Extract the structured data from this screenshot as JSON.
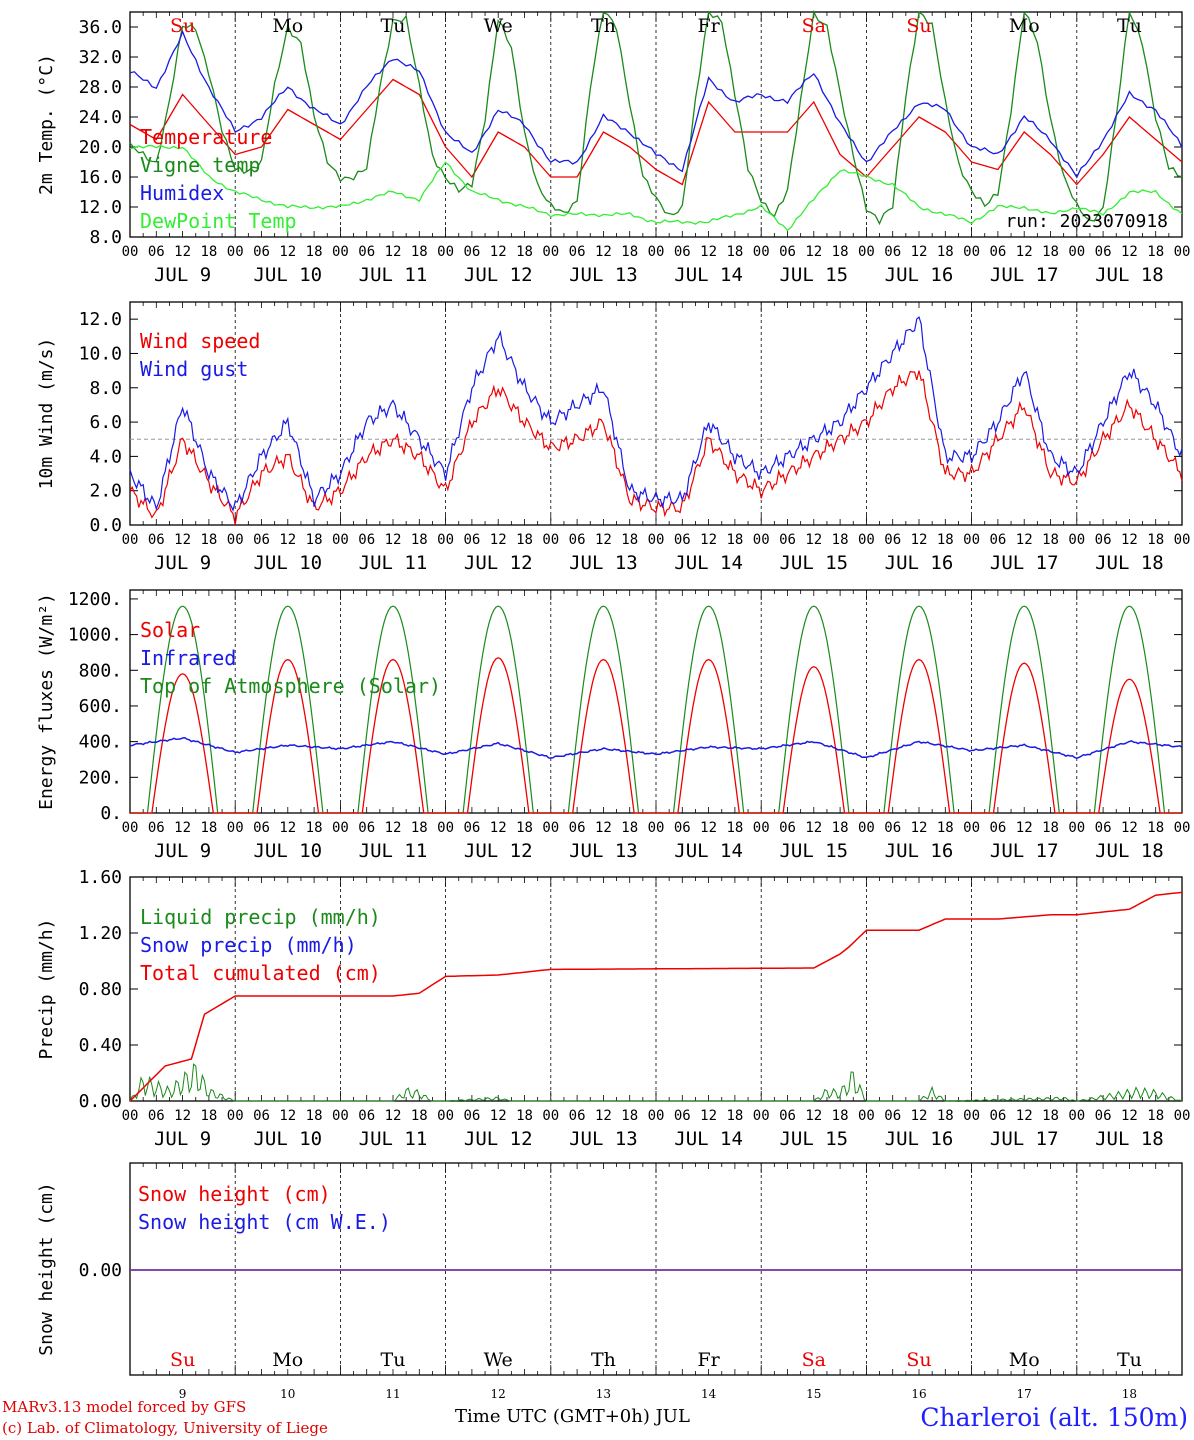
{
  "colors": {
    "red": "#ee0000",
    "green": "#1a8a1a",
    "blue": "#1a1ae6",
    "lightgreen": "#33ee33",
    "purple": "#7030a0",
    "gray": "#999999"
  },
  "days": {
    "weekday_labels": [
      "Su",
      "Mo",
      "Tu",
      "We",
      "Th",
      "Fr",
      "Sa",
      "Su",
      "Mo",
      "Tu"
    ],
    "weekend_flags": [
      true,
      false,
      false,
      false,
      false,
      false,
      true,
      true,
      false,
      false
    ],
    "date_labels": [
      "JUL  9",
      "JUL 10",
      "JUL 11",
      "JUL 12",
      "JUL 13",
      "JUL 14",
      "JUL 15",
      "JUL 16",
      "JUL 17",
      "JUL 18"
    ],
    "day_numbers": [
      "9",
      "10",
      "11",
      "12",
      "13",
      "14",
      "15",
      "16",
      "17",
      "18"
    ],
    "hour_labels": [
      "00",
      "06",
      "12",
      "18"
    ],
    "final_hour_label": "00"
  },
  "footer": {
    "model_line": "MARv3.13 model forced by GFS",
    "credit_line": "(c) Lab. of Climatology, University of Liege",
    "time_axis_label": "Time UTC (GMT+0h) JUL",
    "station": "Charleroi (alt. 150m)"
  },
  "chart_data": [
    {
      "type": "line",
      "ylabel": "2m Temp. (°C)",
      "ylim": [
        8,
        38
      ],
      "yticks": [
        "8.0",
        "12.0",
        "16.0",
        "20.0",
        "24.0",
        "28.0",
        "32.0",
        "36.0"
      ],
      "annotation": "run: 2023070918",
      "series": [
        {
          "name": "Temperature",
          "color": "red",
          "x": [
            0,
            6,
            12,
            18,
            24,
            30,
            36,
            42,
            48,
            54,
            60,
            66,
            72,
            78,
            84,
            90,
            96,
            102,
            108,
            114,
            120,
            126,
            132,
            138,
            144,
            150,
            156,
            162,
            168,
            174,
            180,
            186,
            192,
            198,
            204,
            210,
            216,
            222,
            228,
            234,
            240
          ],
          "values": [
            23,
            21,
            27,
            23,
            19,
            20,
            25,
            23,
            21,
            25,
            29,
            27,
            20,
            16,
            22,
            20,
            16,
            16,
            22,
            20,
            17,
            15,
            26,
            22,
            22,
            22,
            26,
            19,
            16,
            20,
            24,
            22,
            18,
            17,
            22,
            19,
            15,
            19,
            24,
            21,
            18
          ]
        },
        {
          "name": "Vigne temp",
          "color": "green",
          "x": [
            0,
            3,
            6,
            9,
            12,
            15,
            18,
            21,
            24,
            27,
            30,
            33,
            36,
            39,
            42,
            45,
            48,
            51,
            54,
            57,
            60,
            63,
            66,
            69,
            72,
            75,
            78,
            81,
            84,
            87,
            90,
            93,
            96,
            99,
            102,
            105,
            108,
            111,
            114,
            117,
            120,
            123,
            126,
            129,
            132,
            135,
            138,
            141,
            144,
            147,
            150,
            153,
            156,
            159,
            162,
            165,
            168,
            171,
            174,
            177,
            180,
            183,
            186,
            189,
            192,
            195,
            198,
            201,
            204,
            207,
            210,
            213,
            216,
            219,
            222,
            225,
            228,
            231,
            234,
            237,
            240
          ],
          "values": [
            20,
            19,
            18,
            26,
            36,
            36,
            30,
            22,
            17,
            17,
            18,
            28,
            36,
            34,
            24,
            18,
            16,
            16,
            17,
            28,
            37,
            37,
            28,
            19,
            16,
            14,
            15,
            24,
            37,
            33,
            22,
            15,
            12,
            11,
            13,
            28,
            38,
            36,
            26,
            16,
            13,
            11,
            12,
            26,
            38,
            37,
            27,
            17,
            13,
            11,
            14,
            26,
            38,
            36,
            27,
            19,
            12,
            10,
            12,
            27,
            38,
            36,
            26,
            18,
            14,
            12,
            14,
            25,
            38,
            34,
            24,
            16,
            12,
            10,
            12,
            24,
            38,
            34,
            24,
            17,
            16
          ]
        },
        {
          "name": "Humidex",
          "color": "blue",
          "x": [
            0,
            6,
            12,
            18,
            24,
            30,
            36,
            42,
            48,
            54,
            60,
            66,
            72,
            78,
            84,
            90,
            96,
            102,
            108,
            114,
            120,
            126,
            132,
            138,
            144,
            150,
            156,
            162,
            168,
            174,
            180,
            186,
            192,
            198,
            204,
            210,
            216,
            222,
            228,
            234,
            240
          ],
          "values": [
            30,
            28,
            35,
            28,
            22,
            24,
            28,
            25,
            23,
            28,
            32,
            30,
            22,
            19,
            25,
            23,
            18,
            18,
            24,
            22,
            19,
            17,
            29,
            26,
            27,
            26,
            30,
            23,
            18,
            22,
            26,
            25,
            20,
            19,
            24,
            21,
            16,
            21,
            27,
            25,
            20
          ]
        },
        {
          "name": "DewPoint Temp",
          "color": "lightgreen",
          "x": [
            0,
            6,
            12,
            18,
            24,
            30,
            36,
            42,
            48,
            54,
            60,
            66,
            72,
            78,
            84,
            90,
            96,
            102,
            108,
            114,
            120,
            126,
            132,
            138,
            144,
            150,
            156,
            162,
            168,
            174,
            180,
            186,
            192,
            198,
            204,
            210,
            216,
            222,
            228,
            234,
            240
          ],
          "values": [
            20,
            20,
            20,
            16,
            14,
            13,
            12,
            12,
            12,
            13,
            14,
            13,
            18,
            14,
            13,
            12,
            11,
            11,
            11,
            11,
            10,
            10,
            10,
            11,
            12,
            9,
            13,
            17,
            16,
            15,
            12,
            11,
            10,
            12,
            12,
            11,
            12,
            11,
            14,
            14,
            11
          ]
        }
      ]
    },
    {
      "type": "line",
      "ylabel": "10m Wind (m/s)",
      "ylim": [
        0,
        13
      ],
      "yticks": [
        "0.0",
        "2.0",
        "4.0",
        "6.0",
        "8.0",
        "10.0",
        "12.0"
      ],
      "reference_line": 5,
      "series": [
        {
          "name": "Wind speed",
          "color": "red",
          "x": [
            0,
            6,
            12,
            18,
            24,
            30,
            36,
            42,
            48,
            54,
            60,
            66,
            72,
            78,
            84,
            90,
            96,
            102,
            108,
            114,
            120,
            126,
            132,
            138,
            144,
            150,
            156,
            162,
            168,
            174,
            180,
            186,
            192,
            198,
            204,
            210,
            216,
            222,
            228,
            234,
            240
          ],
          "values": [
            2,
            0.5,
            5,
            2.5,
            0.5,
            3,
            4,
            1,
            2,
            4,
            5,
            4,
            2,
            6,
            8,
            6,
            4.5,
            5,
            6,
            1.5,
            1,
            1,
            5,
            3,
            2,
            3,
            4,
            5,
            6,
            8,
            9,
            3,
            3,
            5,
            7,
            3,
            2.5,
            5,
            7,
            5,
            3
          ]
        },
        {
          "name": "Wind gust",
          "color": "blue",
          "x": [
            0,
            6,
            12,
            18,
            24,
            30,
            36,
            42,
            48,
            54,
            60,
            66,
            72,
            78,
            84,
            90,
            96,
            102,
            108,
            114,
            120,
            126,
            132,
            138,
            144,
            150,
            156,
            162,
            168,
            174,
            180,
            186,
            192,
            198,
            204,
            210,
            216,
            222,
            228,
            234,
            240
          ],
          "values": [
            3,
            1,
            7,
            3,
            1,
            4,
            6,
            1.5,
            3,
            6,
            7,
            5,
            3,
            8,
            11,
            8,
            6,
            7,
            8,
            2,
            1.5,
            1.5,
            6,
            4,
            3,
            4,
            5,
            6,
            8,
            10,
            12,
            4,
            4,
            6,
            9,
            4,
            3,
            6,
            9,
            7,
            4
          ]
        }
      ]
    },
    {
      "type": "line",
      "ylabel": "Energy fluxes (W/m²)",
      "ylim": [
        0,
        1250
      ],
      "yticks": [
        "0.",
        "200.",
        "400.",
        "600.",
        "800.",
        "1000.",
        "1200."
      ],
      "series": [
        {
          "name": "Solar",
          "color": "red",
          "peaks": [
            780,
            860,
            860,
            870,
            860,
            860,
            820,
            860,
            840,
            750
          ]
        },
        {
          "name": "Infrared",
          "color": "blue",
          "x": [
            0,
            12,
            24,
            36,
            48,
            60,
            72,
            84,
            96,
            108,
            120,
            132,
            144,
            156,
            168,
            180,
            192,
            204,
            216,
            228,
            240
          ],
          "values": [
            380,
            420,
            340,
            380,
            360,
            400,
            330,
            390,
            310,
            360,
            330,
            370,
            360,
            400,
            310,
            400,
            350,
            380,
            310,
            400,
            370
          ]
        },
        {
          "name": "Top of Atmosphere (Solar)",
          "color": "green",
          "peak": 1160
        }
      ]
    },
    {
      "type": "line",
      "ylabel": "Precip (mm/h)",
      "ylim": [
        0,
        1.6
      ],
      "yticks": [
        "0.00",
        "0.40",
        "0.80",
        "1.20",
        "1.60"
      ],
      "series": [
        {
          "name": "Liquid precip (mm/h)",
          "color": "green",
          "x": [
            0,
            3,
            6,
            9,
            12,
            15,
            18,
            21,
            24,
            60,
            63,
            66,
            69,
            72,
            84,
            87,
            156,
            159,
            162,
            165,
            168,
            171,
            180,
            183,
            186,
            213,
            216,
            230,
            234,
            240
          ],
          "values": [
            0,
            0.2,
            0.15,
            0.1,
            0.2,
            0.3,
            0.1,
            0.05,
            0,
            0,
            0.1,
            0.08,
            0,
            0,
            0.03,
            0,
            0,
            0.1,
            0.08,
            0.25,
            0,
            0,
            0,
            0.1,
            0,
            0.03,
            0,
            0.1,
            0.08,
            0
          ]
        },
        {
          "name": "Snow precip (mm/h)",
          "color": "blue",
          "x": [],
          "values": []
        },
        {
          "name": "Total cumulated (cm)",
          "color": "red",
          "x": [
            0,
            8,
            14,
            17,
            24,
            60,
            66,
            72,
            84,
            96,
            156,
            162,
            164,
            168,
            180,
            186,
            198,
            210,
            216,
            228,
            234,
            240
          ],
          "values": [
            0,
            0.25,
            0.3,
            0.62,
            0.75,
            0.75,
            0.77,
            0.89,
            0.9,
            0.94,
            0.95,
            1.05,
            1.1,
            1.22,
            1.22,
            1.3,
            1.3,
            1.33,
            1.33,
            1.37,
            1.47,
            1.49
          ]
        }
      ]
    },
    {
      "type": "line",
      "ylabel": "Snow height (cm)",
      "yticks": [
        "0.00"
      ],
      "series": [
        {
          "name": "Snow height (cm)",
          "color": "red",
          "values": [
            0,
            0
          ]
        },
        {
          "name": "Snow height (cm W.E.)",
          "color": "blue",
          "values": [
            0,
            0
          ]
        }
      ]
    }
  ]
}
